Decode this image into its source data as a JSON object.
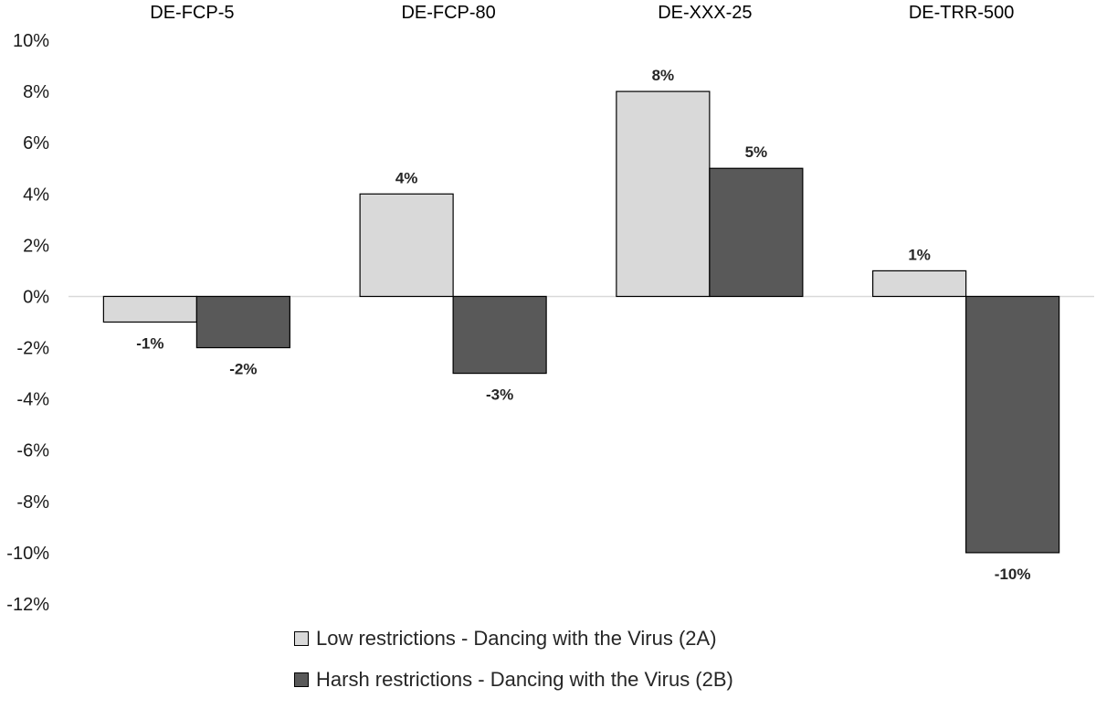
{
  "chart_data": {
    "type": "bar",
    "categories": [
      "DE-FCP-5",
      "DE-FCP-80",
      "DE-XXX-25",
      "DE-TRR-500"
    ],
    "series": [
      {
        "name": "Low restrictions - Dancing with the Virus (2A)",
        "values": [
          -1,
          4,
          8,
          1
        ],
        "labels": [
          "-1%",
          "4%",
          "8%",
          "1%"
        ],
        "color": "#d9d9d9"
      },
      {
        "name": "Harsh restrictions - Dancing with the Virus (2B)",
        "values": [
          -2,
          -3,
          5,
          -10
        ],
        "labels": [
          "-2%",
          "-3%",
          "5%",
          "-10%"
        ],
        "color": "#595959"
      }
    ],
    "ylim": [
      -12,
      10
    ],
    "yticks": [
      10,
      8,
      6,
      4,
      2,
      0,
      -2,
      -4,
      -6,
      -8,
      -10,
      -12
    ],
    "ytick_labels": [
      "10%",
      "8%",
      "6%",
      "4%",
      "2%",
      "0%",
      "-2%",
      "-4%",
      "-6%",
      "-8%",
      "-10%",
      "-12%"
    ],
    "category_labels_position": "top",
    "legend_position": "bottom",
    "grid": false,
    "bar_border_color": "#000000",
    "zero_line_color": "#d9d9d9"
  }
}
